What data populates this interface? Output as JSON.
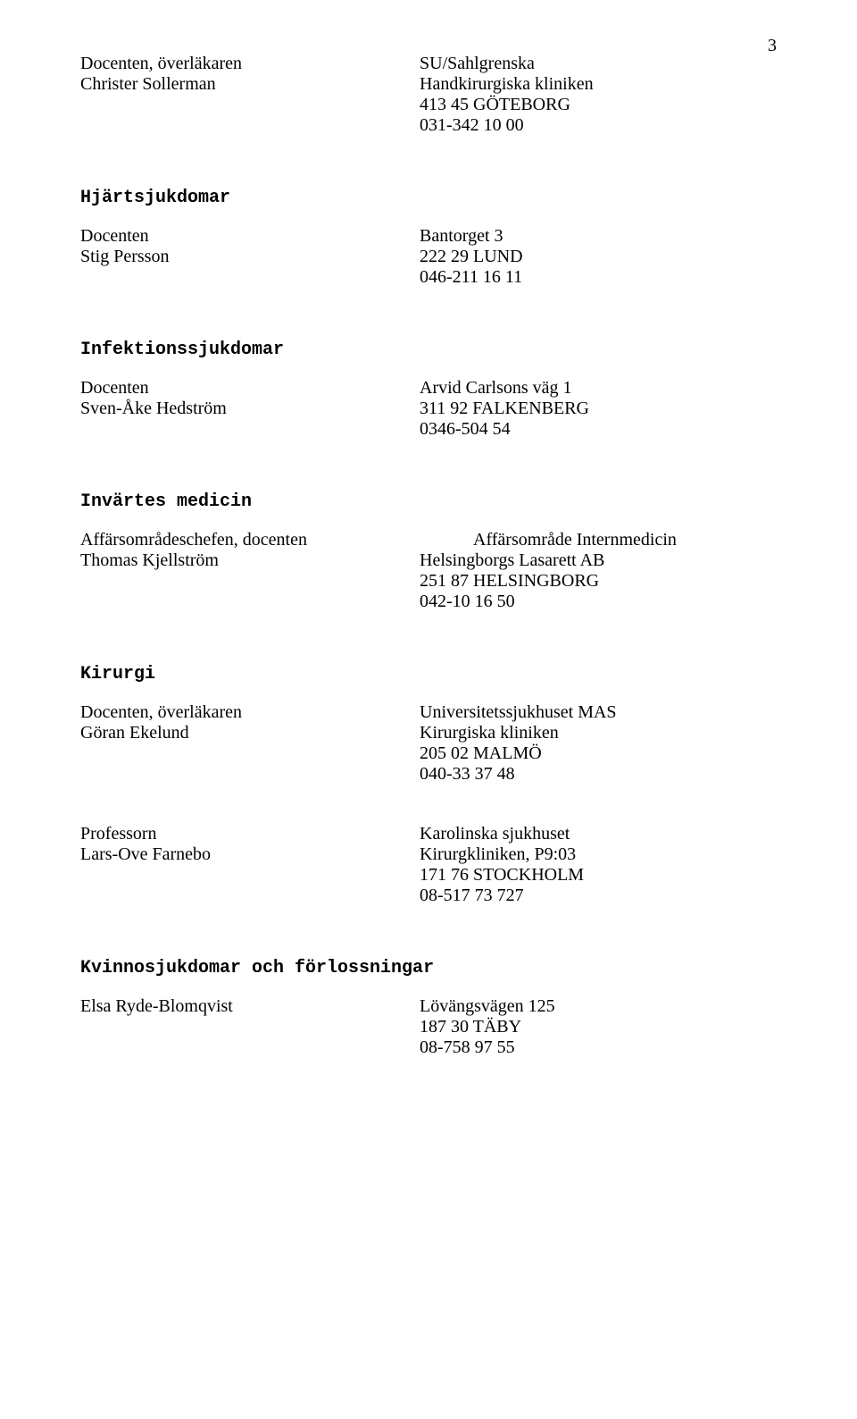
{
  "page": {
    "number": "3"
  },
  "font": {
    "body_family": "Bookman Old Style, Century Schoolbook, Georgia, serif",
    "mono_family": "Courier New, Courier, monospace",
    "body_size": 20,
    "color": "#000000",
    "background": "#ffffff"
  },
  "blocks": [
    {
      "name": "handkirurgi-block",
      "heading": null,
      "entries": [
        {
          "left": [
            "Docenten, överläkaren",
            "Christer Sollerman"
          ],
          "right": [
            "SU/Sahlgrenska",
            "Handkirurgiska kliniken",
            "413 45 GÖTEBORG",
            "031-342 10 00"
          ]
        }
      ]
    },
    {
      "name": "hjartsjukdomar-block",
      "heading": "Hjärtsjukdomar",
      "entries": [
        {
          "left": [
            "Docenten",
            "Stig Persson"
          ],
          "right": [
            "Bantorget 3",
            "222 29 LUND",
            "046-211 16 11"
          ]
        }
      ]
    },
    {
      "name": "infektionssjukdomar-block",
      "heading": "Infektionssjukdomar",
      "entries": [
        {
          "left": [
            "Docenten",
            "Sven-Åke Hedström"
          ],
          "right": [
            "Arvid Carlsons väg 1",
            "311 92 FALKENBERG",
            "0346-504 54"
          ]
        }
      ]
    },
    {
      "name": "invartes-medicin-block",
      "heading": "Invärtes medicin",
      "entries": [
        {
          "left": [
            "Affärsområdeschefen, docenten",
            "Thomas Kjellström"
          ],
          "right_first_line_shift": true,
          "right": [
            "Affärsområde Internmedicin",
            "Helsingborgs Lasarett AB",
            "251 87 HELSINGBORG",
            "042-10 16 50"
          ]
        }
      ]
    },
    {
      "name": "kirurgi-block",
      "heading": "Kirurgi",
      "entries": [
        {
          "left": [
            "Docenten, överläkaren",
            "Göran Ekelund"
          ],
          "right": [
            "Universitetssjukhuset MAS",
            "Kirurgiska kliniken",
            "205 02  MALMÖ",
            "040-33 37 48"
          ]
        },
        {
          "left": [
            "Professorn",
            "Lars-Ove Farnebo"
          ],
          "right": [
            "Karolinska sjukhuset",
            "Kirurgkliniken, P9:03",
            "171 76 STOCKHOLM",
            "08-517 73 727"
          ]
        }
      ]
    },
    {
      "name": "kvinnosjukdomar-block",
      "heading": "Kvinnosjukdomar och förlossningar",
      "entries": [
        {
          "left": [
            "Elsa Ryde-Blomqvist"
          ],
          "right": [
            "Lövängsvägen 125",
            "187 30 TÄBY",
            "08-758 97 55"
          ]
        }
      ]
    }
  ]
}
